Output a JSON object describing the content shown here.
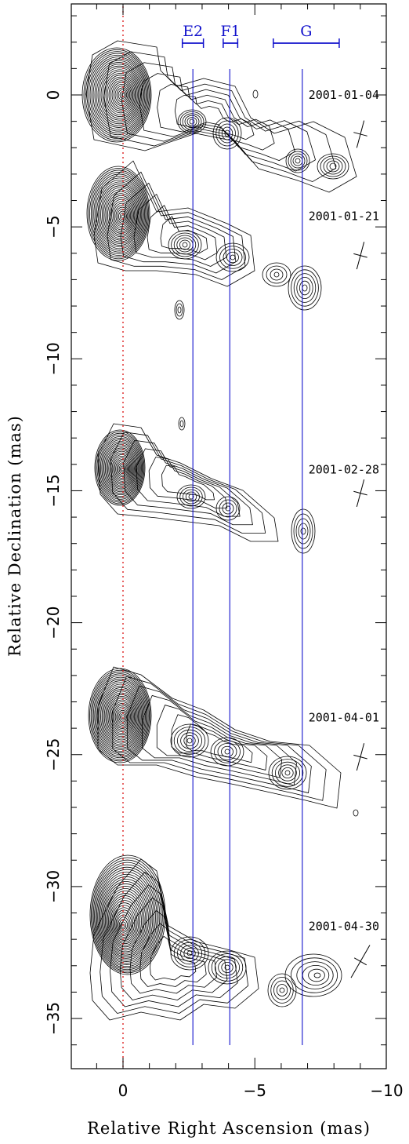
{
  "chart_data": {
    "type": "contour",
    "xlabel": "Relative Right Ascension (mas)",
    "ylabel": "Relative Declination (mas)",
    "xlim": [
      2,
      -10
    ],
    "ylim": [
      -37,
      3.5
    ],
    "x_ticks": [
      {
        "value": 0,
        "label": "0"
      },
      {
        "value": -5,
        "label": "−5"
      },
      {
        "value": -10,
        "label": "−10"
      }
    ],
    "y_ticks": [
      {
        "value": 0,
        "label": "0"
      },
      {
        "value": -5,
        "label": "−5"
      },
      {
        "value": -10,
        "label": "−10"
      },
      {
        "value": -15,
        "label": "−15"
      },
      {
        "value": -20,
        "label": "−20"
      },
      {
        "value": -25,
        "label": "−25"
      },
      {
        "value": -30,
        "label": "−30"
      },
      {
        "value": -35,
        "label": "−35"
      }
    ],
    "reference_line": {
      "x": 0,
      "style": "dotted",
      "color": "#dd2222"
    },
    "component_lines": [
      {
        "label": "E2",
        "x": -2.65,
        "range": [
          -2.25,
          -3.05
        ]
      },
      {
        "label": "F1",
        "x": -4.05,
        "range": [
          -3.8,
          -4.35
        ]
      },
      {
        "label": "G",
        "x": -6.8,
        "range": [
          -5.7,
          -8.2
        ]
      }
    ],
    "line_color": "#1010cc",
    "epochs": [
      {
        "label": "2001-01-04",
        "y0": 0
      },
      {
        "label": "2001-01-21",
        "y0": -4.6
      },
      {
        "label": "2001-02-28",
        "y0": -14.2
      },
      {
        "label": "2001-04-01",
        "y0": -23.6
      },
      {
        "label": "2001-04-30",
        "y0": -31.5
      }
    ]
  }
}
